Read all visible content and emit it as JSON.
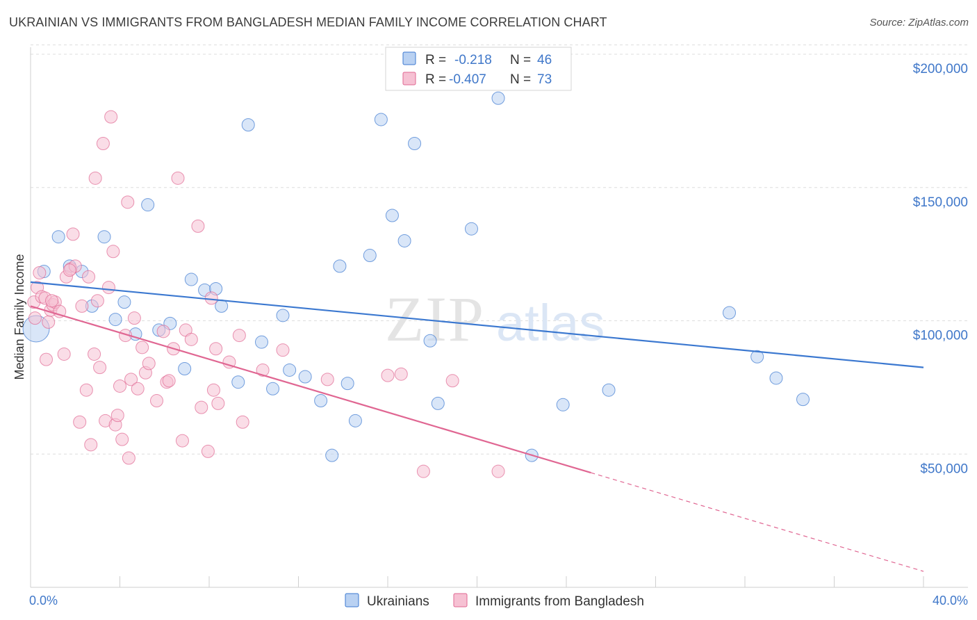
{
  "title": "UKRAINIAN VS IMMIGRANTS FROM BANGLADESH MEDIAN FAMILY INCOME CORRELATION CHART",
  "source": "Source: ZipAtlas.com",
  "colors": {
    "blue": "#3b78d0",
    "blue_fill": "#b9d1f2",
    "pink": "#e06692",
    "pink_fill": "#f6c1d3",
    "grid": "#dddddd",
    "tick_label": "#3f77c9"
  },
  "stats_legend": {
    "rows": [
      {
        "series": "Ukrainians",
        "r_label": "R =",
        "r_value": "-0.218",
        "n_label": "N =",
        "n_value": "46"
      },
      {
        "series": "Immigrants from Bangladesh",
        "r_label": "R =",
        "r_value": "-0.407",
        "n_label": "N =",
        "n_value": "73"
      }
    ]
  },
  "watermark": {
    "part1": "ZIP",
    "part2": "atlas"
  },
  "chart_data": {
    "type": "scatter",
    "title": "UKRAINIAN VS IMMIGRANTS FROM BANGLADESH MEDIAN FAMILY INCOME CORRELATION CHART",
    "xlabel": "",
    "ylabel": "Median Family Income",
    "xlim": [
      0,
      40
    ],
    "ylim": [
      0,
      205000
    ],
    "x_tick_labels": [
      "0.0%",
      "40.0%"
    ],
    "y_ticks": [
      50000,
      100000,
      150000,
      200000
    ],
    "y_tick_labels": [
      "$50,000",
      "$100,000",
      "$150,000",
      "$200,000"
    ],
    "grid": true,
    "legend_position": "bottom",
    "series": [
      {
        "name": "Ukrainians",
        "color": "#3b78d0",
        "trend": {
          "x": [
            0,
            40
          ],
          "y": [
            114500,
            82500
          ]
        },
        "points": [
          [
            0.25,
            97000
          ],
          [
            0.6,
            118500
          ],
          [
            1.25,
            131500
          ],
          [
            1.75,
            120500
          ],
          [
            2.3,
            118500
          ],
          [
            2.75,
            105500
          ],
          [
            3.3,
            131500
          ],
          [
            3.8,
            100500
          ],
          [
            4.2,
            107000
          ],
          [
            4.7,
            95000
          ],
          [
            5.25,
            143500
          ],
          [
            5.75,
            96500
          ],
          [
            6.25,
            99000
          ],
          [
            6.9,
            82000
          ],
          [
            7.2,
            115500
          ],
          [
            7.8,
            111500
          ],
          [
            8.3,
            112000
          ],
          [
            8.55,
            105500
          ],
          [
            9.3,
            77000
          ],
          [
            9.75,
            173500
          ],
          [
            10.35,
            92000
          ],
          [
            10.85,
            74500
          ],
          [
            11.3,
            102000
          ],
          [
            11.6,
            81500
          ],
          [
            12.3,
            79000
          ],
          [
            13.0,
            70000
          ],
          [
            13.5,
            49500
          ],
          [
            13.85,
            120500
          ],
          [
            14.2,
            76500
          ],
          [
            14.55,
            62500
          ],
          [
            15.2,
            124500
          ],
          [
            15.7,
            175500
          ],
          [
            16.2,
            139500
          ],
          [
            16.75,
            130000
          ],
          [
            17.2,
            166500
          ],
          [
            17.9,
            92500
          ],
          [
            18.25,
            69000
          ],
          [
            19.75,
            134500
          ],
          [
            20.95,
            183500
          ],
          [
            22.45,
            49500
          ],
          [
            23.85,
            68500
          ],
          [
            25.9,
            74000
          ],
          [
            31.3,
            103000
          ],
          [
            32.55,
            86500
          ],
          [
            33.4,
            78500
          ],
          [
            34.6,
            70500
          ]
        ]
      },
      {
        "name": "Immigrants from Bangladesh",
        "color": "#e06692",
        "trend_solid": {
          "x": [
            0,
            25.1
          ],
          "y": [
            105500,
            43000
          ]
        },
        "trend_dashed": {
          "x": [
            25.1,
            40
          ],
          "y": [
            43000,
            6000
          ]
        },
        "points": [
          [
            0.15,
            107000
          ],
          [
            0.2,
            101000
          ],
          [
            0.3,
            112500
          ],
          [
            0.4,
            118000
          ],
          [
            0.5,
            109000
          ],
          [
            0.65,
            108500
          ],
          [
            0.7,
            85500
          ],
          [
            0.8,
            99500
          ],
          [
            0.9,
            104000
          ],
          [
            1.0,
            106000
          ],
          [
            1.1,
            107000
          ],
          [
            1.3,
            103500
          ],
          [
            1.5,
            87500
          ],
          [
            1.6,
            116500
          ],
          [
            1.8,
            119500
          ],
          [
            1.9,
            132500
          ],
          [
            2.0,
            120500
          ],
          [
            2.2,
            62000
          ],
          [
            2.3,
            105500
          ],
          [
            2.5,
            74000
          ],
          [
            2.6,
            116500
          ],
          [
            2.7,
            53500
          ],
          [
            2.85,
            87500
          ],
          [
            3.0,
            107500
          ],
          [
            3.1,
            82500
          ],
          [
            3.25,
            166500
          ],
          [
            3.35,
            62500
          ],
          [
            3.5,
            112500
          ],
          [
            3.6,
            176500
          ],
          [
            3.7,
            126000
          ],
          [
            3.8,
            61000
          ],
          [
            3.9,
            64500
          ],
          [
            4.0,
            75500
          ],
          [
            4.1,
            55500
          ],
          [
            4.25,
            94500
          ],
          [
            4.35,
            144500
          ],
          [
            4.4,
            48500
          ],
          [
            4.5,
            78000
          ],
          [
            4.65,
            101000
          ],
          [
            4.8,
            74500
          ],
          [
            5.0,
            90000
          ],
          [
            5.15,
            80500
          ],
          [
            5.3,
            84000
          ],
          [
            5.65,
            70000
          ],
          [
            5.95,
            96000
          ],
          [
            6.1,
            77000
          ],
          [
            6.2,
            77500
          ],
          [
            6.4,
            89500
          ],
          [
            6.6,
            153500
          ],
          [
            6.8,
            55000
          ],
          [
            6.95,
            96500
          ],
          [
            7.2,
            93000
          ],
          [
            7.5,
            135500
          ],
          [
            7.65,
            67500
          ],
          [
            7.95,
            51000
          ],
          [
            8.1,
            108500
          ],
          [
            8.2,
            74000
          ],
          [
            8.3,
            89500
          ],
          [
            8.4,
            69000
          ],
          [
            8.9,
            84500
          ],
          [
            9.35,
            94500
          ],
          [
            9.5,
            62000
          ],
          [
            10.4,
            81500
          ],
          [
            11.3,
            89000
          ],
          [
            13.3,
            78000
          ],
          [
            16.0,
            79500
          ],
          [
            16.6,
            80000
          ],
          [
            17.6,
            43500
          ],
          [
            18.9,
            77500
          ],
          [
            20.95,
            43500
          ],
          [
            0.95,
            107500
          ],
          [
            2.9,
            153500
          ],
          [
            1.75,
            119000
          ]
        ]
      }
    ]
  }
}
